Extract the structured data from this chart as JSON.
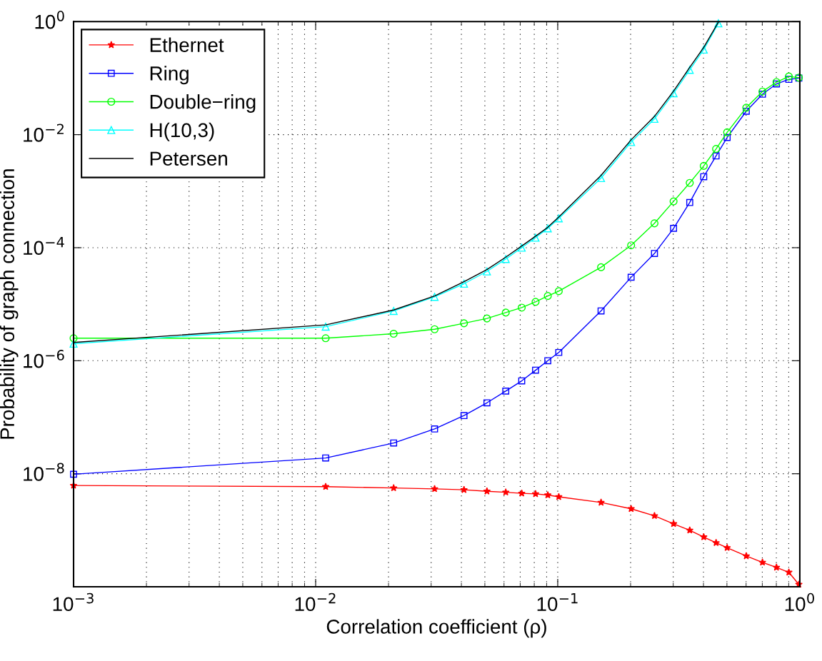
{
  "chart_data": {
    "type": "line",
    "xlabel": "Correlation coefficient (ρ)",
    "ylabel": "Probability of graph connection",
    "log": "xy",
    "grid": true,
    "legend": "top left",
    "xlim": [
      0.001,
      1
    ],
    "ylim": [
      1e-10,
      1
    ],
    "xticks": [
      {
        "value": 0.001,
        "label": "10$^{−3}$"
      },
      {
        "value": 0.01,
        "label": "10$^{−2}$"
      },
      {
        "value": 0.1,
        "label": "10$^{−1}$"
      },
      {
        "value": 1,
        "label": "10$^{0}$"
      }
    ],
    "yticks": [
      {
        "value": 1e-10,
        "label": null
      },
      {
        "value": 1e-08,
        "label": "10$^{−8}$"
      },
      {
        "value": 1e-06,
        "label": "10$^{−6}$"
      },
      {
        "value": 0.0001,
        "label": "10$^{−4}$"
      },
      {
        "value": 0.01,
        "label": "10$^{−2}$"
      },
      {
        "value": 1,
        "label": "10$^{0}$"
      }
    ],
    "series": [
      {
        "name": "Ethernet",
        "color": "#ff0000",
        "marker": "star",
        "x": [
          0.001,
          0.011,
          0.021,
          0.031,
          0.041,
          0.051,
          0.061,
          0.071,
          0.081,
          0.091,
          0.101,
          0.151,
          0.201,
          0.251,
          0.301,
          0.351,
          0.401,
          0.451,
          0.501,
          0.601,
          0.701,
          0.801,
          0.901,
          0.991
        ],
        "values": [
          6.2e-09,
          5.9e-09,
          5.6e-09,
          5.4e-09,
          5.2e-09,
          4.9e-09,
          4.7e-09,
          4.5e-09,
          4.4e-09,
          4.2e-09,
          3.9e-09,
          3.1e-09,
          2.4e-09,
          1.8e-09,
          1.3e-09,
          1e-09,
          7.6e-10,
          6e-10,
          4.9e-10,
          3.5e-10,
          2.7e-10,
          2.2e-10,
          1.8e-10,
          1.1e-10
        ]
      },
      {
        "name": "Ring",
        "color": "#0000ff",
        "marker": "square",
        "x": [
          0.001,
          0.011,
          0.021,
          0.031,
          0.041,
          0.051,
          0.061,
          0.071,
          0.081,
          0.091,
          0.101,
          0.151,
          0.201,
          0.251,
          0.301,
          0.351,
          0.401,
          0.451,
          0.501,
          0.601,
          0.701,
          0.801,
          0.901,
          0.991
        ],
        "values": [
          9.8e-09,
          1.9e-08,
          3.5e-08,
          6.2e-08,
          1.07e-07,
          1.8e-07,
          2.9e-07,
          4.4e-07,
          6.8e-07,
          1e-06,
          1.4e-06,
          7.6e-06,
          3e-05,
          7.9e-05,
          0.00022,
          0.00063,
          0.0018,
          0.0042,
          0.0089,
          0.026,
          0.052,
          0.079,
          0.095,
          0.1
        ]
      },
      {
        "name": "Double−ring",
        "color": "#00ff00",
        "marker": "circle",
        "x": [
          0.001,
          0.011,
          0.021,
          0.031,
          0.041,
          0.051,
          0.061,
          0.071,
          0.081,
          0.091,
          0.101,
          0.151,
          0.201,
          0.251,
          0.301,
          0.351,
          0.401,
          0.451,
          0.501,
          0.601,
          0.701,
          0.801,
          0.901,
          0.991
        ],
        "values": [
          2.5e-06,
          2.5e-06,
          3e-06,
          3.6e-06,
          4.6e-06,
          5.6e-06,
          7.1e-06,
          8.7e-06,
          1.1e-05,
          1.4e-05,
          1.7e-05,
          4.5e-05,
          0.00011,
          0.00027,
          0.00066,
          0.0014,
          0.0028,
          0.0056,
          0.011,
          0.03,
          0.058,
          0.085,
          0.107,
          0.102
        ]
      },
      {
        "name": "H(10,3)",
        "color": "#00ffff",
        "marker": "triangle",
        "x": [
          0.001,
          0.011,
          0.021,
          0.031,
          0.041,
          0.051,
          0.061,
          0.071,
          0.081,
          0.091,
          0.101,
          0.151,
          0.201,
          0.251,
          0.301,
          0.351,
          0.401,
          0.461
        ],
        "values": [
          2e-06,
          4e-06,
          7.6e-06,
          1.35e-05,
          2.3e-05,
          3.8e-05,
          6.3e-05,
          0.0001,
          0.00015,
          0.00022,
          0.00033,
          0.0017,
          0.0074,
          0.019,
          0.054,
          0.14,
          0.32,
          0.93
        ]
      },
      {
        "name": "Petersen",
        "color": "#000000",
        "marker": "none",
        "x": [
          0.001,
          0.011,
          0.021,
          0.031,
          0.041,
          0.051,
          0.061,
          0.071,
          0.081,
          0.091,
          0.101,
          0.151,
          0.201,
          0.251,
          0.301,
          0.351,
          0.401,
          0.461
        ],
        "values": [
          2.1e-06,
          4.3e-06,
          7.9e-06,
          1.4e-05,
          2.5e-05,
          4.1e-05,
          6.8e-05,
          0.000107,
          0.00016,
          0.00023,
          0.00035,
          0.0019,
          0.0081,
          0.021,
          0.059,
          0.155,
          0.35,
          0.98
        ]
      }
    ]
  }
}
